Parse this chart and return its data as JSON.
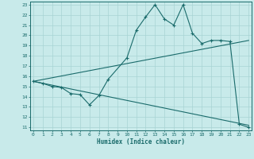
{
  "xlabel": "Humidex (Indice chaleur)",
  "bg_color": "#c8eaea",
  "grid_color": "#a8d4d4",
  "line_color": "#1a6b6b",
  "x_min": 0,
  "x_max": 23,
  "y_min": 11,
  "y_max": 23,
  "line1_x": [
    0,
    1,
    2,
    3,
    4,
    5,
    6,
    7,
    8,
    10,
    11,
    12,
    13,
    14,
    15,
    16,
    17,
    18,
    19,
    20,
    21,
    22,
    23
  ],
  "line1_y": [
    15.5,
    15.3,
    15.0,
    14.9,
    14.3,
    14.2,
    13.2,
    14.1,
    15.7,
    17.8,
    20.5,
    21.8,
    23.0,
    21.6,
    21.0,
    23.0,
    20.2,
    19.2,
    19.5,
    19.5,
    19.4,
    11.3,
    11.0
  ],
  "line2_x": [
    0,
    23
  ],
  "line2_y": [
    15.5,
    19.5
  ],
  "line3_x": [
    0,
    23
  ],
  "line3_y": [
    15.5,
    11.2
  ]
}
